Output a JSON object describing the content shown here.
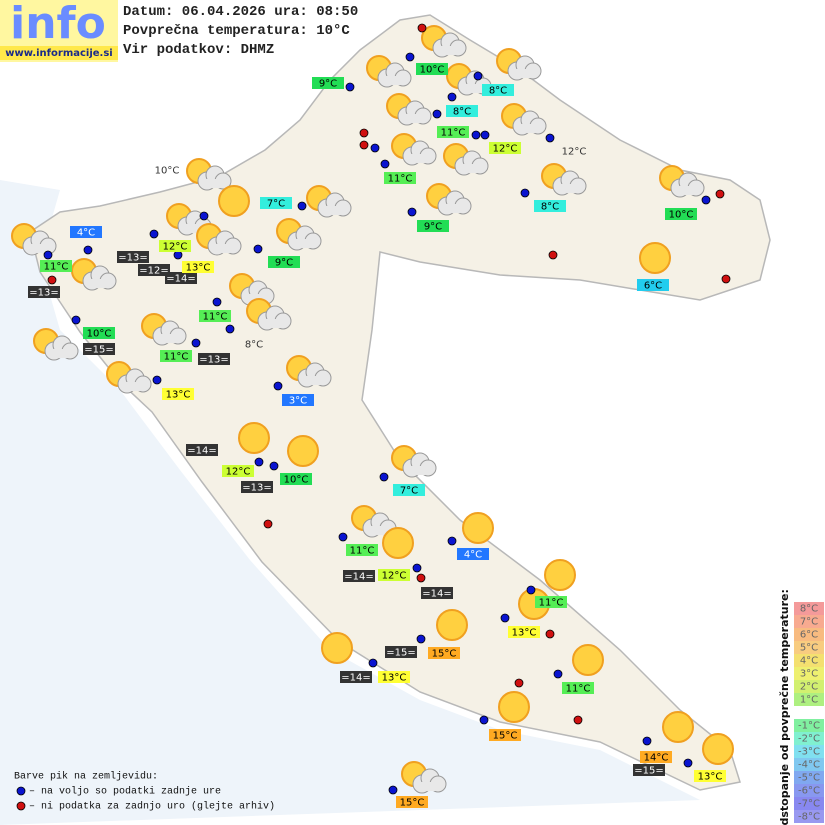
{
  "header": {
    "logo": "info",
    "url": "www.informacije.si",
    "lines": [
      "Datum: 06.04.2026 ura: 08:50",
      "Povprečna temperatura: 10°C",
      "Vir podatkov: DHMZ"
    ]
  },
  "stations": [
    "10°C",
    "9°C",
    "8°C",
    "8°C",
    "11°C",
    "12°C",
    "12°C",
    "11°C",
    "10°C",
    "7°C",
    "8°C",
    "10°C",
    "4°C",
    "12°C",
    "9°C",
    "=13=",
    "=12=",
    "=14=",
    "13°C",
    "9°C",
    "11°C",
    "6°C",
    "=13=",
    "11°C",
    "10°C",
    "=15=",
    "11°C",
    "=13=",
    "8°C",
    "13°C",
    "3°C",
    "=14=",
    "12°C",
    "10°C",
    "=13=",
    "7°C",
    "11°C",
    "4°C",
    "=14=",
    "12°C",
    "=14=",
    "11°C",
    "13°C",
    "=15=",
    "15°C",
    "=14=",
    "13°C",
    "11°C",
    "15°C",
    "14°C",
    "=15=",
    "13°C",
    "15°C"
  ],
  "legend": {
    "title": "Barve pik na zemljevidu:",
    "items": [
      "– na voljo so podatki zadnje ure",
      "– ni podatka za zadnjo uro (glejte arhiv)"
    ]
  },
  "scale": {
    "title": "Odstopanje od povprečne temperature:",
    "labels": [
      "8°C",
      "7°C",
      "6°C",
      "5°C",
      "4°C",
      "3°C",
      "2°C",
      "1°C",
      "-1°C",
      "-2°C",
      "-3°C",
      "-4°C",
      "-5°C",
      "-6°C",
      "-7°C",
      "-8°C"
    ]
  }
}
